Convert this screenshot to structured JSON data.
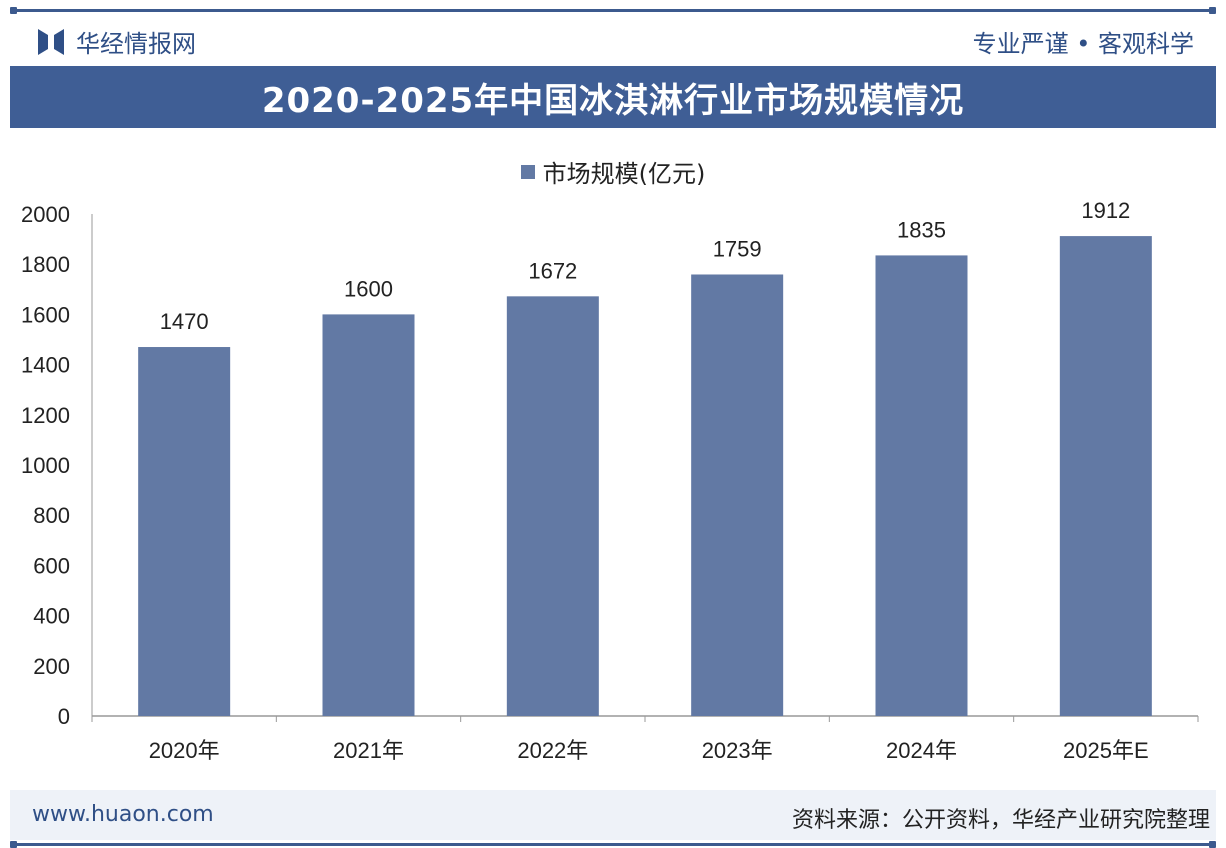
{
  "header": {
    "brand": "华经情报网",
    "slogan": "专业严谨 • 客观科学"
  },
  "footer": {
    "site": "www.huaon.com",
    "source": "资料来源：公开资料，华经产业研究院整理"
  },
  "watermark": {
    "text": "华经产业研究院",
    "url": "www.huaon.com"
  },
  "colors": {
    "bar": "#6279a4",
    "banner": "#3f5e95"
  },
  "chart_data": {
    "type": "bar",
    "title": "2020-2025年中国冰淇淋行业市场规模情况",
    "legend": [
      "市场规模(亿元)"
    ],
    "legend_position": "top-center",
    "categories": [
      "2020年",
      "2021年",
      "2022年",
      "2023年",
      "2024年",
      "2025年E"
    ],
    "series": [
      {
        "name": "市场规模(亿元)",
        "values": [
          1470,
          1600,
          1672,
          1759,
          1835,
          1912
        ]
      }
    ],
    "ylim": [
      0,
      2000
    ],
    "yticks": [
      0,
      200,
      400,
      600,
      800,
      1000,
      1200,
      1400,
      1600,
      1800,
      2000
    ],
    "xlabel": "",
    "ylabel": "",
    "grid": false
  }
}
